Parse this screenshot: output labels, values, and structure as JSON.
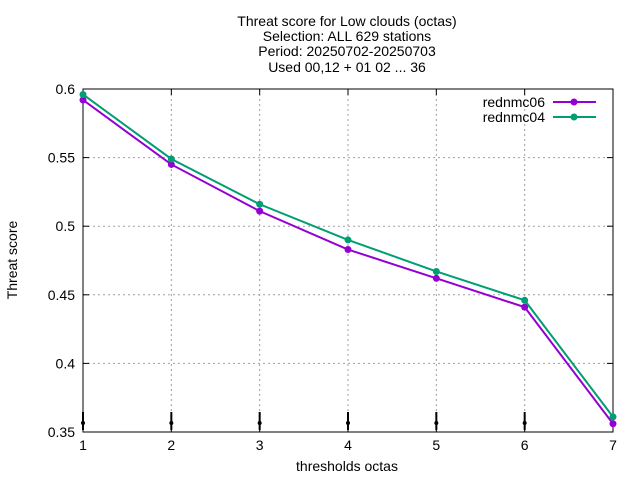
{
  "title_lines": [
    "Threat score  for Low clouds (octas)",
    "Selection: ALL    629 stations",
    "Period: 20250702-20250703",
    "Used 00,12 + 01 02 ... 36"
  ],
  "chart_data": {
    "type": "line",
    "title": "Threat score  for Low clouds (octas)",
    "xlabel": "thresholds octas",
    "ylabel": "Threat score",
    "x": [
      1,
      2,
      3,
      4,
      5,
      6,
      7
    ],
    "xlim": [
      1,
      7
    ],
    "ylim": [
      0.35,
      0.6
    ],
    "x_ticks": [
      "1",
      "2",
      "3",
      "4",
      "5",
      "6",
      "7"
    ],
    "y_ticks": [
      "0.35",
      "0.4",
      "0.45",
      "0.5",
      "0.55",
      "0.6"
    ],
    "grid": true,
    "legend_position": "top-right",
    "series": [
      {
        "name": "rednmc06",
        "color": "#9400d3",
        "values": [
          0.592,
          0.545,
          0.511,
          0.483,
          0.462,
          0.441,
          0.356
        ]
      },
      {
        "name": "rednmc04",
        "color": "#009e73",
        "values": [
          0.596,
          0.549,
          0.516,
          0.49,
          0.467,
          0.446,
          0.361
        ]
      }
    ]
  }
}
